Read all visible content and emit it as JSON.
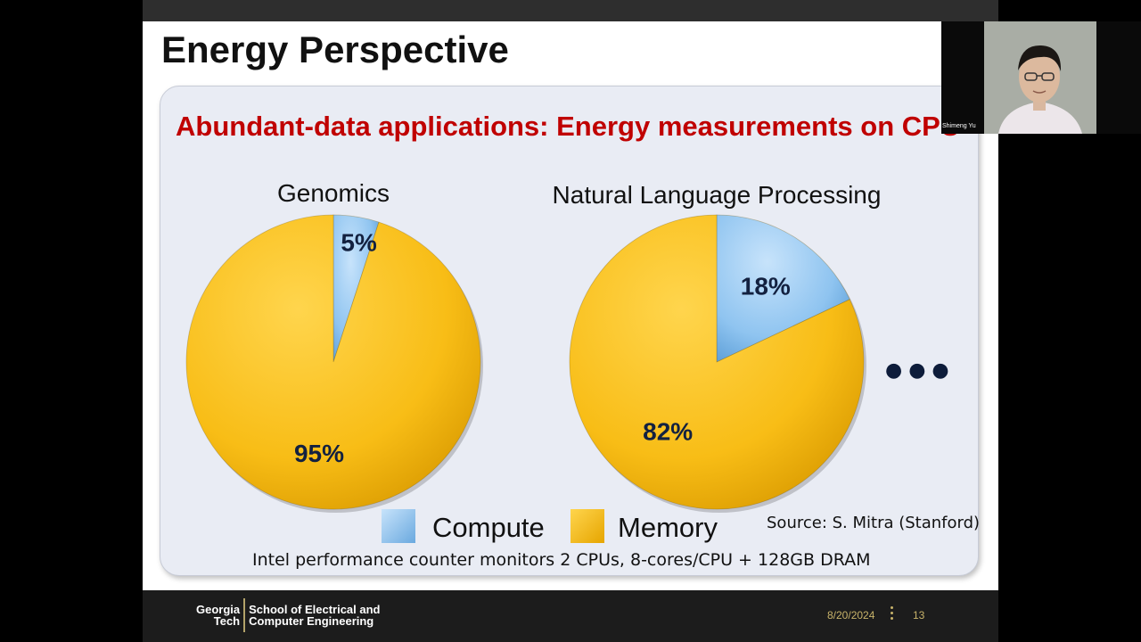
{
  "slide": {
    "title": "Energy Perspective",
    "subtitle": "Abundant-data applications: Energy measurements on CPU",
    "source": "Source: S. Mitra (Stanford)",
    "note": "Intel performance counter monitors 2 CPUs, 8-cores/CPU + 128GB DRAM",
    "ellipsis": "● ● ●",
    "legend": [
      {
        "label": "Compute",
        "color": "#8fc4f0"
      },
      {
        "label": "Memory",
        "color": "#f8bd16"
      }
    ]
  },
  "chart_data": [
    {
      "type": "pie",
      "title": "Genomics",
      "categories": [
        "Compute",
        "Memory"
      ],
      "values": [
        5,
        95
      ],
      "labels": [
        "5%",
        "95%"
      ],
      "colors": [
        "#8fc4f0",
        "#f8bd16"
      ]
    },
    {
      "type": "pie",
      "title": "Natural Language Processing",
      "categories": [
        "Compute",
        "Memory"
      ],
      "values": [
        18,
        82
      ],
      "labels": [
        "18%",
        "82%"
      ],
      "colors": [
        "#8fc4f0",
        "#f8bd16"
      ]
    }
  ],
  "footer": {
    "school_short": "Georgia\nTech",
    "school_name": "School of Electrical and\nComputer Engineering",
    "date": "8/20/2024",
    "slide_number": "13"
  },
  "webcam": {
    "participant_name": "Shimeng Yu"
  }
}
